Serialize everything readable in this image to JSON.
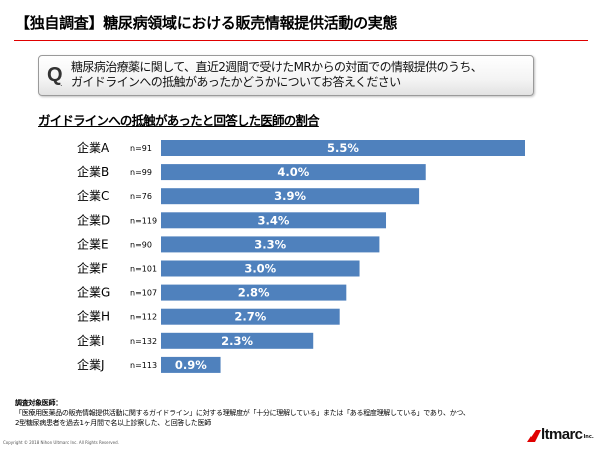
{
  "header": {
    "title": "【独自調査】糖尿病領域における販売情報提供活動の実態"
  },
  "question": {
    "mark": "Q",
    "dot": ".",
    "lines": [
      "糖尿病治療薬に関して、直近2週間で受けたMRからの対面での情報提供のうち、",
      "ガイドラインへの抵触があったかどうかについてお答えください"
    ]
  },
  "colors": {
    "bar": "#4f81bd",
    "rule": "#e00000",
    "value_label": "#ffffff"
  },
  "chart_data": {
    "type": "bar",
    "orientation": "horizontal",
    "title": "ガイドラインへの抵触があったと回答した医師の割合",
    "xlabel": "",
    "ylabel": "",
    "categories": [
      "企業A",
      "企業B",
      "企業C",
      "企業D",
      "企業E",
      "企業F",
      "企業G",
      "企業H",
      "企業I",
      "企業J"
    ],
    "n_labels": [
      "n=91",
      "n=99",
      "n=76",
      "n=119",
      "n=90",
      "n=101",
      "n=107",
      "n=112",
      "n=132",
      "n=113"
    ],
    "values": [
      5.5,
      4.0,
      3.9,
      3.4,
      3.3,
      3.0,
      2.8,
      2.7,
      2.3,
      0.9
    ],
    "value_labels": [
      "5.5%",
      "4.0%",
      "3.9%",
      "3.4%",
      "3.3%",
      "3.0%",
      "2.8%",
      "2.7%",
      "2.3%",
      "0.9%"
    ],
    "unit": "%",
    "xlim": [
      0,
      5.5
    ],
    "grid": false,
    "legend": "none"
  },
  "footnote": {
    "heading": "調査対象医師：",
    "lines": [
      "「医療用医薬品の販売情報提供活動に関するガイドライン」に対する理解度が「十分に理解している」または「ある程度理解している」であり、かつ、",
      "2型糖尿病患者を過去1ヶ月間で名以上診察した、と回答した医師"
    ]
  },
  "copyright": "Copyright © 2018 Nihon Ultmarc Inc. All Rights Reserved.",
  "logo": {
    "text": "ltmarc",
    "suffix": "Inc."
  }
}
